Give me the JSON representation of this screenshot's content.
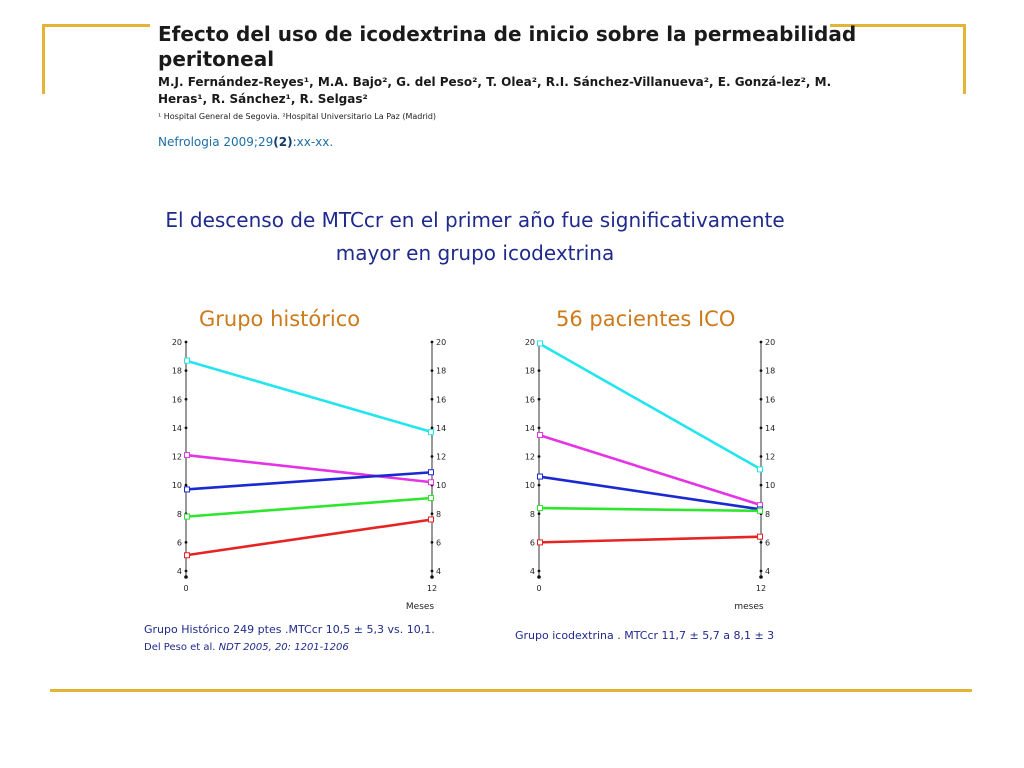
{
  "header": {
    "title": "Efecto del uso de icodextrina de inicio sobre la permeabilidad peritoneal",
    "authors": "M.J. Fernández-Reyes¹, M.A. Bajo², G. del Peso², T. Olea², R.I. Sánchez-Villanueva², E. Gonzá-lez², M. Heras¹, R. Sánchez¹, R. Selgas²",
    "affiliation": "¹ Hospital General de Segovia. ²Hospital Universitario La Paz (Madrid)",
    "journal_prefix": "Nefrologia 2009;29",
    "journal_issue": "(2)",
    "journal_suffix": ":xx-xx."
  },
  "headline": "El descenso de MTCcr en el primer año fue significativamente mayor en grupo icodextrina",
  "colors": {
    "accent_rule": "#e3b437",
    "title_orange": "#cc7a1a",
    "text_blue": "#1f2a8c"
  },
  "captions": {
    "left_main": "Grupo Histórico 249 ptes .MTCcr 10,5 ± 5,3 vs. 10,1.",
    "left_ref": " Del Peso et al. ",
    "left_ref_italic": "NDT 2005, 20: 1201-1206",
    "right_main": "Grupo icodextrina . MTCcr  11,7 ± 5,7 a 8,1 ± 3"
  },
  "chart_data": [
    {
      "type": "line",
      "title": "Grupo histórico",
      "xlabel": "Meses",
      "ylabel": "",
      "x": [
        0,
        12
      ],
      "ylim": [
        4,
        20
      ],
      "yticks": [
        4,
        6,
        8,
        10,
        12,
        14,
        16,
        18,
        20
      ],
      "xticks": [
        0,
        12
      ],
      "series": [
        {
          "color": "#22e5ee",
          "values": [
            18.7,
            13.7
          ]
        },
        {
          "color": "#e434e4",
          "values": [
            12.1,
            10.2
          ]
        },
        {
          "color": "#1a2ad0",
          "values": [
            9.7,
            10.9
          ]
        },
        {
          "color": "#2ee62e",
          "values": [
            7.8,
            9.1
          ]
        },
        {
          "color": "#e62424",
          "values": [
            5.1,
            7.6
          ]
        }
      ]
    },
    {
      "type": "line",
      "title": "56 pacientes ICO",
      "xlabel": "meses",
      "ylabel": "",
      "x": [
        0,
        12
      ],
      "ylim": [
        4,
        20
      ],
      "yticks": [
        4,
        6,
        8,
        10,
        12,
        14,
        16,
        18,
        20
      ],
      "xticks": [
        0,
        12
      ],
      "series": [
        {
          "color": "#22e5ee",
          "values": [
            19.9,
            11.1
          ]
        },
        {
          "color": "#e434e4",
          "values": [
            13.5,
            8.6
          ]
        },
        {
          "color": "#1a2ad0",
          "values": [
            10.6,
            8.3
          ]
        },
        {
          "color": "#2ee62e",
          "values": [
            8.4,
            8.2
          ]
        },
        {
          "color": "#e62424",
          "values": [
            6.0,
            6.4
          ]
        }
      ]
    }
  ]
}
